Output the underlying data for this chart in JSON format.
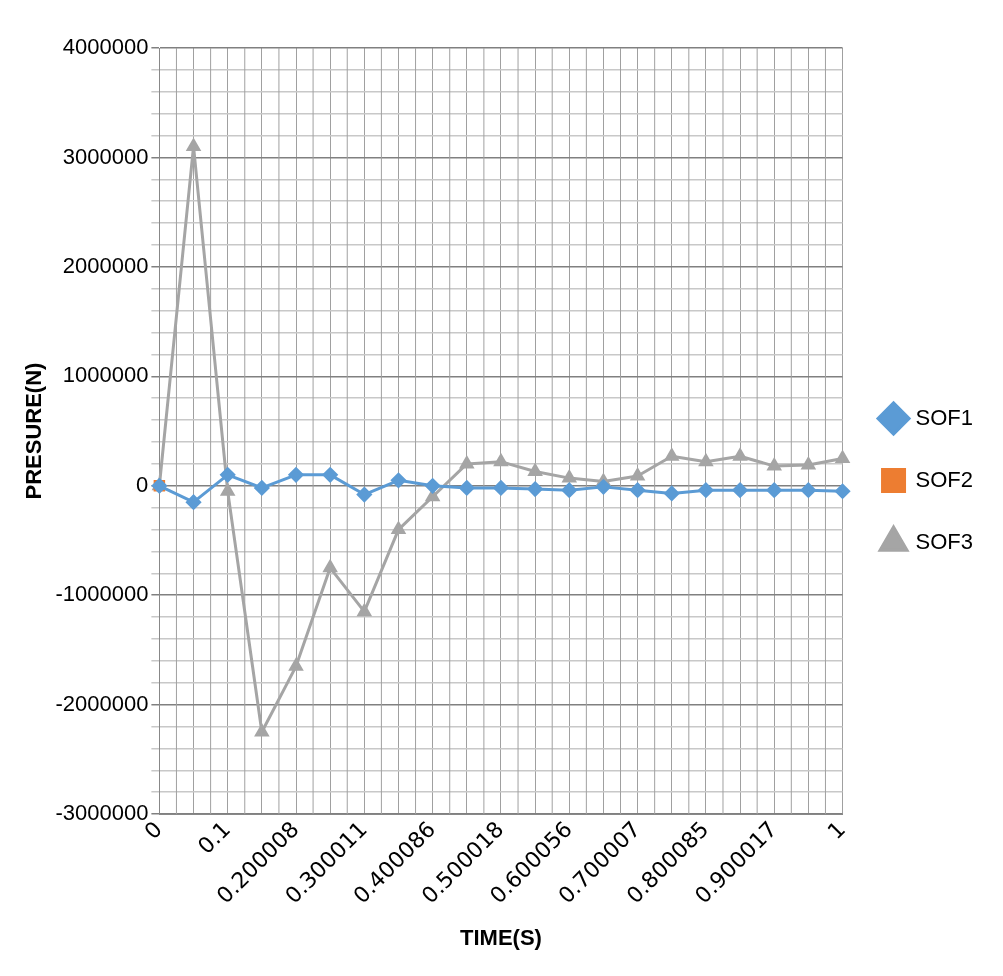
{
  "chart_data": {
    "type": "line",
    "xlabel": "TIME(S)",
    "ylabel": "PRESURE(N)",
    "categories": [
      "0",
      null,
      "0.1",
      null,
      "0.200008",
      null,
      "0.300011",
      null,
      "0.400086",
      null,
      "0.500018",
      null,
      "0.600056",
      null,
      "0.700007",
      null,
      "0.800085",
      null,
      "0.900017",
      null,
      "1"
    ],
    "series": [
      {
        "name": "SOF1",
        "color": "#5b9bd5",
        "marker": "diamond",
        "values": [
          0,
          -150000,
          100000,
          -20000,
          100000,
          100000,
          -80000,
          50000,
          0,
          -20000,
          -20000,
          -30000,
          -40000,
          -10000,
          -40000,
          -70000,
          -40000,
          -40000,
          -40000,
          -40000,
          -50000
        ]
      },
      {
        "name": "SOF2",
        "color": "#ed7d31",
        "marker": "square",
        "values": [
          0,
          null,
          null,
          null,
          null,
          null,
          null,
          null,
          null,
          null,
          null,
          null,
          null,
          null,
          null,
          null,
          null,
          null,
          null,
          null,
          null
        ]
      },
      {
        "name": "SOF3",
        "color": "#a5a5a5",
        "marker": "triangle",
        "values": [
          0,
          3100000,
          -50000,
          -2250000,
          -1650000,
          -750000,
          -1150000,
          -400000,
          -100000,
          200000,
          220000,
          130000,
          70000,
          40000,
          90000,
          270000,
          220000,
          270000,
          180000,
          190000,
          250000
        ]
      }
    ],
    "ylim": [
      -3000000,
      4000000
    ],
    "yticks": [
      -3000000,
      {
        "value": -2800000,
        "label": null
      },
      {
        "value": -2600000,
        "label": null
      },
      {
        "value": -2400000,
        "label": null
      },
      {
        "value": -2200000,
        "label": null
      },
      -2000000,
      {
        "value": -1800000,
        "label": null
      },
      {
        "value": -1600000,
        "label": null
      },
      {
        "value": -1400000,
        "label": null
      },
      {
        "value": -1200000,
        "label": null
      },
      -1000000,
      {
        "value": -800000,
        "label": null
      },
      {
        "value": -600000,
        "label": null
      },
      {
        "value": -400000,
        "label": null
      },
      {
        "value": -200000,
        "label": null
      },
      0,
      {
        "value": 200000,
        "label": null
      },
      {
        "value": 400000,
        "label": null
      },
      {
        "value": 600000,
        "label": null
      },
      {
        "value": 800000,
        "label": null
      },
      1000000,
      {
        "value": 1200000,
        "label": null
      },
      {
        "value": 1400000,
        "label": null
      },
      {
        "value": 1600000,
        "label": null
      },
      {
        "value": 1800000,
        "label": null
      },
      2000000,
      {
        "value": 2200000,
        "label": null
      },
      {
        "value": 2400000,
        "label": null
      },
      {
        "value": 2600000,
        "label": null
      },
      {
        "value": 2800000,
        "label": null
      },
      3000000,
      {
        "value": 3200000,
        "label": null
      },
      {
        "value": 3400000,
        "label": null
      },
      {
        "value": 3600000,
        "label": null
      },
      {
        "value": 3800000,
        "label": null
      },
      4000000
    ],
    "grid": true,
    "legend": "right",
    "line_style": "solid"
  }
}
